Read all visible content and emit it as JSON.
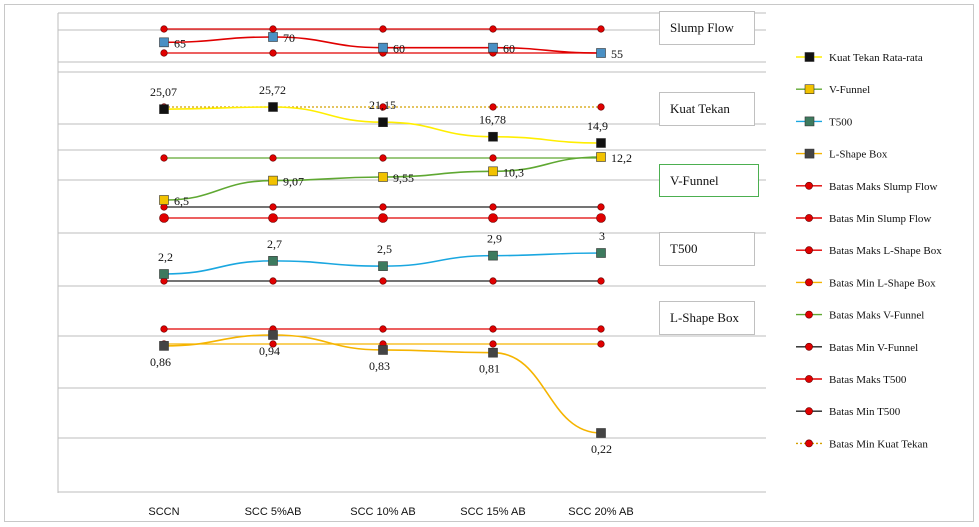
{
  "chart_data": {
    "type": "line",
    "categories": [
      "SCCN",
      "SCC 5%AB",
      "SCC 10% AB",
      "SCC 15% AB",
      "SCC 20% AB"
    ],
    "panel_labels": [
      "Slump Flow",
      "Kuat Tekan",
      "V-Funnel",
      "T500",
      "L-Shape Box"
    ],
    "series": [
      {
        "name": "Slump Flow",
        "values": [
          65,
          70,
          60,
          60,
          55
        ],
        "labels": [
          "65",
          "70",
          "60",
          "60",
          "55"
        ],
        "color": "#e00000",
        "marker_color": "#4a90c4",
        "in_legend": false
      },
      {
        "name": "Kuat Tekan Rata-rata",
        "values": [
          25.07,
          25.72,
          21.15,
          16.78,
          14.9
        ],
        "labels": [
          "25,07",
          "25,72",
          "21,15",
          "16,78",
          "14,9"
        ],
        "color": "#ffee00",
        "marker_color": "#111111",
        "in_legend": true
      },
      {
        "name": "V-Funnel",
        "values": [
          6.5,
          9.07,
          9.55,
          10.3,
          12.2
        ],
        "labels": [
          "6,5",
          "9,07",
          "9,55",
          "10,3",
          "12,2"
        ],
        "color": "#5fa832",
        "marker_color": "#f2c200",
        "in_legend": true
      },
      {
        "name": "T500",
        "values": [
          2.2,
          2.7,
          2.5,
          2.9,
          3
        ],
        "labels": [
          "2,2",
          "2,7",
          "2,5",
          "2,9",
          "3"
        ],
        "color": "#1aa7e0",
        "marker_color": "#3d7a5e",
        "in_legend": true
      },
      {
        "name": "L-Shape Box",
        "values": [
          0.86,
          0.94,
          0.83,
          0.81,
          0.22
        ],
        "labels": [
          "0,86",
          "0,94",
          "0,83",
          "0,81",
          "0,22"
        ],
        "color": "#f5b400",
        "marker_color": "#444444",
        "in_legend": true
      }
    ],
    "limits": [
      {
        "name": "Batas Maks Slump Flow",
        "color": "#e00000",
        "marker_color": "#e00000"
      },
      {
        "name": "Batas Min Slump Flow",
        "color": "#e00000",
        "marker_color": "#e00000"
      },
      {
        "name": "Batas Maks L-Shape Box",
        "color": "#e00000",
        "marker_color": "#e00000"
      },
      {
        "name": "Batas Min L-Shape Box",
        "color": "#f5b400",
        "marker_color": "#e00000"
      },
      {
        "name": "Batas Maks V-Funnel",
        "color": "#5fa832",
        "marker_color": "#e00000"
      },
      {
        "name": "Batas Min V-Funnel",
        "color": "#222222",
        "marker_color": "#e00000"
      },
      {
        "name": "Batas Maks T500",
        "color": "#e00000",
        "marker_color": "#e00000"
      },
      {
        "name": "Batas Min T500",
        "color": "#222222",
        "marker_color": "#e00000"
      },
      {
        "name": "Batas Min Kuat Tekan",
        "color": "#d4a000",
        "marker_color": "#e00000",
        "dotted": true
      }
    ],
    "legend_placement": "right",
    "grid": true
  }
}
